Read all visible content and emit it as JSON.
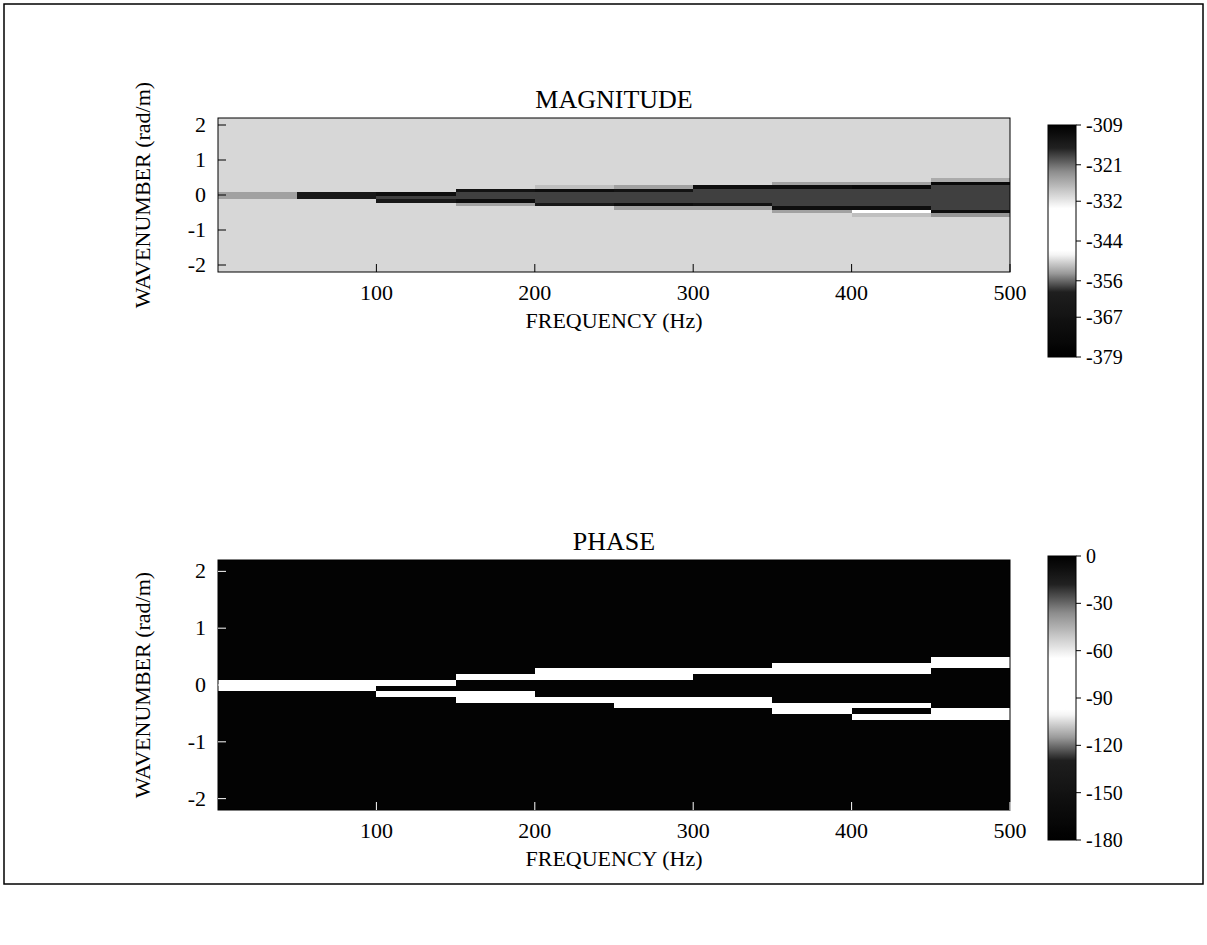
{
  "chart_data": [
    {
      "type": "heatmap",
      "title": "MAGNITUDE",
      "x_label": "FREQUENCY (Hz)",
      "y_label": "WAVENUMBER (rad/m)",
      "xlim": [
        0,
        500
      ],
      "ylim": [
        -2.2,
        2.2
      ],
      "xticks": [
        100,
        200,
        300,
        400,
        500
      ],
      "yticks": [
        -2,
        -1,
        0,
        1,
        2
      ],
      "x_edges": [
        0,
        50,
        100,
        150,
        200,
        250,
        300,
        350,
        400,
        450,
        500
      ],
      "y_edges": [
        -2.2,
        -0.7,
        -0.6,
        -0.5,
        -0.4,
        -0.3,
        -0.2,
        -0.1,
        0,
        0.1,
        0.2,
        0.3,
        0.4,
        0.5,
        2.2
      ],
      "cells": [
        [
          -350,
          -350,
          -350,
          -350,
          -350,
          -350,
          -350,
          -350,
          -350,
          -350
        ],
        [
          -350,
          -350,
          -350,
          -350,
          -350,
          -350,
          -350,
          -350,
          -350,
          -350
        ],
        [
          -350,
          -350,
          -350,
          -350,
          -350,
          -350,
          -350,
          -350,
          -328,
          -324
        ],
        [
          -350,
          -350,
          -350,
          -350,
          -350,
          -350,
          -350,
          -325,
          -345,
          -312
        ],
        [
          -350,
          -350,
          -350,
          -350,
          -350,
          -325,
          -325,
          -312,
          -312,
          -318
        ],
        [
          -350,
          -350,
          -350,
          -325,
          -314,
          -312,
          -313,
          -318,
          -318,
          -318
        ],
        [
          -350,
          -350,
          -314,
          -312,
          -318,
          -318,
          -318,
          -318,
          -318,
          -318
        ],
        [
          -325,
          -314,
          -318,
          -318,
          -318,
          -318,
          -318,
          -318,
          -318,
          -318
        ],
        [
          -325,
          -314,
          -312,
          -318,
          -318,
          -318,
          -318,
          -318,
          -318,
          -318
        ],
        [
          -350,
          -350,
          -350,
          -313,
          -312,
          -313,
          -318,
          -318,
          -318,
          -318
        ],
        [
          -350,
          -350,
          -350,
          -350,
          -328,
          -325,
          -312,
          -312,
          -311,
          -318
        ],
        [
          -350,
          -350,
          -350,
          -350,
          -350,
          -350,
          -350,
          -325,
          -325,
          -311
        ],
        [
          -350,
          -350,
          -350,
          -350,
          -350,
          -350,
          -350,
          -350,
          -350,
          -326
        ],
        [
          -350,
          -350,
          -350,
          -350,
          -350,
          -350,
          -350,
          -350,
          -350,
          -350
        ]
      ],
      "colorbar": {
        "range": [
          -379,
          -309
        ],
        "ticks": [
          -309,
          -321,
          -332,
          -344,
          -356,
          -367,
          -379
        ]
      }
    },
    {
      "type": "heatmap",
      "title": "PHASE",
      "x_label": "FREQUENCY (Hz)",
      "y_label": "WAVENUMBER (rad/m)",
      "xlim": [
        0,
        500
      ],
      "ylim": [
        -2.2,
        2.2
      ],
      "xticks": [
        100,
        200,
        300,
        400,
        500
      ],
      "yticks": [
        -2,
        -1,
        0,
        1,
        2
      ],
      "x_edges": [
        0,
        50,
        100,
        150,
        200,
        250,
        300,
        350,
        400,
        450,
        500
      ],
      "y_edges": [
        -2.2,
        -0.7,
        -0.6,
        -0.5,
        -0.4,
        -0.3,
        -0.2,
        -0.1,
        0,
        0.1,
        0.2,
        0.3,
        0.4,
        0.5,
        2.2
      ],
      "cells": [
        [
          -175,
          -175,
          -175,
          -175,
          -175,
          -175,
          -175,
          -175,
          -175,
          -175
        ],
        [
          -175,
          -175,
          -175,
          -175,
          -175,
          -175,
          -175,
          -175,
          -175,
          -175
        ],
        [
          -175,
          -175,
          -175,
          -175,
          -175,
          -175,
          -175,
          -175,
          -85,
          -80
        ],
        [
          -175,
          -175,
          -175,
          -175,
          -175,
          -175,
          -175,
          -85,
          -175,
          -80
        ],
        [
          -175,
          -175,
          -175,
          -175,
          -175,
          -85,
          -80,
          -80,
          -80,
          -175
        ],
        [
          -175,
          -175,
          -175,
          -85,
          -75,
          -75,
          -80,
          -175,
          -175,
          -175
        ],
        [
          -175,
          -175,
          -80,
          -80,
          -175,
          -175,
          -175,
          -175,
          -175,
          -175
        ],
        [
          -80,
          -90,
          -175,
          -175,
          -175,
          -175,
          -175,
          -175,
          -175,
          -175
        ],
        [
          -80,
          -90,
          -80,
          -175,
          -175,
          -175,
          -175,
          -175,
          -175,
          -175
        ],
        [
          -175,
          -175,
          -175,
          -75,
          -80,
          -85,
          -175,
          -175,
          -175,
          -175
        ],
        [
          -175,
          -175,
          -175,
          -175,
          -85,
          -80,
          -75,
          -80,
          -80,
          -175
        ],
        [
          -175,
          -175,
          -175,
          -175,
          -175,
          -175,
          -175,
          -85,
          -80,
          -75
        ],
        [
          -175,
          -175,
          -175,
          -175,
          -175,
          -175,
          -175,
          -175,
          -175,
          -85
        ],
        [
          -175,
          -175,
          -175,
          -175,
          -175,
          -175,
          -175,
          -175,
          -175,
          -175
        ]
      ],
      "colorbar": {
        "range": [
          -180,
          0
        ],
        "ticks": [
          0,
          -30,
          -60,
          -90,
          -120,
          -150,
          -180
        ]
      }
    }
  ]
}
